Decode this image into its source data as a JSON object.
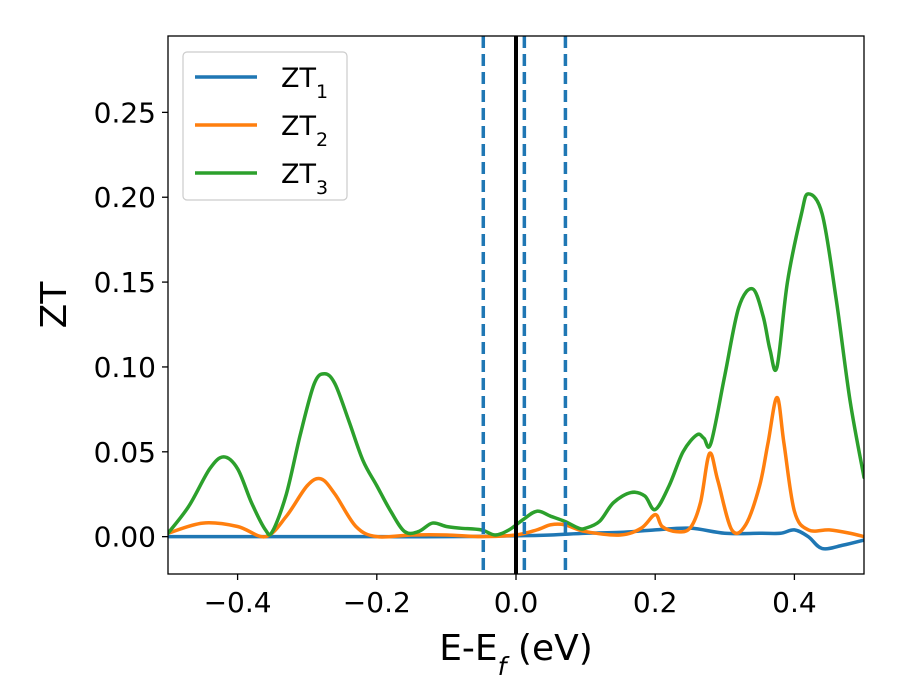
{
  "chart_data": {
    "type": "line",
    "xlabel": {
      "main": "E-E",
      "sub": "f",
      "unit": " (eV)"
    },
    "ylabel": "ZT",
    "xlim": [
      -0.5,
      0.5
    ],
    "ylim": [
      -0.022,
      0.295
    ],
    "xticks": [
      -0.4,
      -0.2,
      0.0,
      0.2,
      0.4
    ],
    "xtick_labels": [
      "−0.4",
      "−0.2",
      "0.0",
      "0.2",
      "0.4"
    ],
    "yticks": [
      0.0,
      0.05,
      0.1,
      0.15,
      0.2,
      0.25
    ],
    "ytick_labels": [
      "0.00",
      "0.05",
      "0.10",
      "0.15",
      "0.20",
      "0.25"
    ],
    "grid": false,
    "legend_placement": "top-left",
    "vlines": [
      {
        "x": 0.0,
        "style": "solid",
        "color": "#000000"
      },
      {
        "x": -0.047,
        "style": "dashed",
        "color": "#1f77b4"
      },
      {
        "x": 0.012,
        "style": "dashed",
        "color": "#1f77b4"
      },
      {
        "x": 0.071,
        "style": "dashed",
        "color": "#1f77b4"
      }
    ],
    "series": [
      {
        "name": {
          "main": "ZT",
          "sub": "1"
        },
        "color": "#1f77b4",
        "x": [
          -0.5,
          -0.4,
          -0.3,
          -0.2,
          -0.1,
          0.0,
          0.05,
          0.1,
          0.15,
          0.2,
          0.25,
          0.3,
          0.35,
          0.38,
          0.4,
          0.42,
          0.44,
          0.47,
          0.5
        ],
        "y": [
          0.0,
          0.0,
          0.0,
          0.0,
          0.0,
          0.0005,
          0.001,
          0.002,
          0.0025,
          0.004,
          0.005,
          0.002,
          0.002,
          0.002,
          0.004,
          0.0,
          -0.007,
          -0.005,
          -0.002
        ]
      },
      {
        "name": {
          "main": "ZT",
          "sub": "2"
        },
        "color": "#ff7f0e",
        "x": [
          -0.5,
          -0.45,
          -0.4,
          -0.36,
          -0.33,
          -0.3,
          -0.28,
          -0.26,
          -0.23,
          -0.2,
          -0.15,
          -0.1,
          -0.05,
          0.0,
          0.03,
          0.05,
          0.07,
          0.1,
          0.15,
          0.18,
          0.2,
          0.21,
          0.23,
          0.25,
          0.265,
          0.278,
          0.29,
          0.31,
          0.33,
          0.35,
          0.362,
          0.375,
          0.385,
          0.4,
          0.42,
          0.45,
          0.48,
          0.5
        ],
        "y": [
          0.002,
          0.008,
          0.006,
          0.0,
          0.012,
          0.03,
          0.034,
          0.025,
          0.006,
          0.0,
          0.001,
          0.001,
          0.0,
          0.001,
          0.004,
          0.007,
          0.007,
          0.003,
          0.001,
          0.005,
          0.013,
          0.006,
          0.003,
          0.005,
          0.02,
          0.049,
          0.033,
          0.004,
          0.007,
          0.03,
          0.055,
          0.082,
          0.055,
          0.015,
          0.004,
          0.004,
          0.002,
          0.0
        ]
      },
      {
        "name": {
          "main": "ZT",
          "sub": "3"
        },
        "color": "#2ca02c",
        "x": [
          -0.5,
          -0.47,
          -0.44,
          -0.42,
          -0.4,
          -0.38,
          -0.36,
          -0.35,
          -0.33,
          -0.31,
          -0.29,
          -0.275,
          -0.26,
          -0.24,
          -0.22,
          -0.2,
          -0.18,
          -0.16,
          -0.14,
          -0.12,
          -0.1,
          -0.08,
          -0.05,
          -0.03,
          -0.01,
          0.01,
          0.03,
          0.05,
          0.07,
          0.09,
          0.1,
          0.12,
          0.14,
          0.165,
          0.185,
          0.2,
          0.22,
          0.24,
          0.26,
          0.27,
          0.28,
          0.3,
          0.32,
          0.34,
          0.355,
          0.365,
          0.375,
          0.39,
          0.41,
          0.42,
          0.44,
          0.46,
          0.48,
          0.5
        ],
        "y": [
          0.002,
          0.018,
          0.04,
          0.047,
          0.04,
          0.02,
          0.004,
          0.003,
          0.025,
          0.06,
          0.09,
          0.096,
          0.09,
          0.068,
          0.045,
          0.03,
          0.015,
          0.003,
          0.003,
          0.008,
          0.006,
          0.005,
          0.004,
          0.001,
          0.004,
          0.01,
          0.015,
          0.012,
          0.009,
          0.005,
          0.005,
          0.009,
          0.02,
          0.026,
          0.024,
          0.016,
          0.03,
          0.05,
          0.06,
          0.058,
          0.055,
          0.095,
          0.135,
          0.146,
          0.13,
          0.11,
          0.1,
          0.15,
          0.19,
          0.202,
          0.19,
          0.14,
          0.08,
          0.035
        ]
      }
    ]
  }
}
